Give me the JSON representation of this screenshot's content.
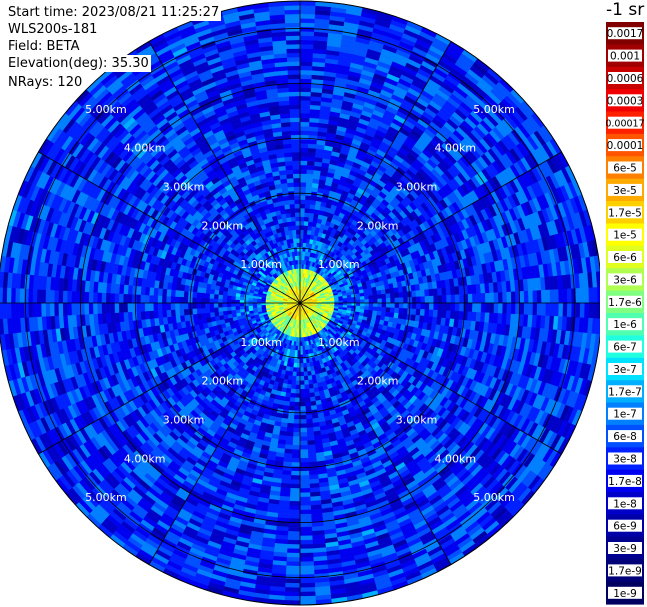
{
  "info": {
    "start_time": "Start time: 2023/08/21 11:25:27",
    "instrument": "WLS200s-181",
    "field": "Field: BETA",
    "elevation": "Elevation(deg): 35.30",
    "nrays": "NRays: 120"
  },
  "colorbar": {
    "unit": "-1 sr",
    "labels": [
      "0.0017",
      "0.001",
      "0.0006",
      "0.0003",
      "0.00017",
      "0.0001",
      "6e-5",
      "3e-5",
      "1.7e-5",
      "1e-5",
      "6e-6",
      "3e-6",
      "1.7e-6",
      "1e-6",
      "6e-7",
      "3e-7",
      "1.7e-7",
      "1e-7",
      "6e-8",
      "3e-8",
      "1.7e-8",
      "1e-8",
      "6e-9",
      "3e-9",
      "1.7e-9",
      "1e-9"
    ],
    "colors": [
      "#800000",
      "#a00000",
      "#c80000",
      "#f00000",
      "#ff2000",
      "#ff5500",
      "#ff8000",
      "#ffaa00",
      "#ffd000",
      "#ffff00",
      "#e0ff20",
      "#b0ff50",
      "#80ff80",
      "#50ffb0",
      "#20ffe0",
      "#00e0ff",
      "#00b0ff",
      "#0080ff",
      "#0050ff",
      "#0020ff",
      "#0000f0",
      "#0000c8",
      "#0000a8",
      "#000090",
      "#000078",
      "#000060"
    ]
  },
  "chart_data": {
    "type": "heatmap",
    "projection": "polar",
    "nrays": 120,
    "range_rings_km": [
      1,
      2,
      3,
      4,
      5
    ],
    "range_ring_labels": [
      "1.00km",
      "2.00km",
      "3.00km",
      "4.00km",
      "5.00km"
    ],
    "max_range_km": 5.5,
    "spoke_count": 12,
    "title": "",
    "colormap": "jet",
    "color_scale": "log",
    "vmin": 1e-09,
    "vmax": 0.0017,
    "regions": [
      {
        "range_km": [
          0,
          0.35
        ],
        "value": 1e-05
      },
      {
        "range_km": [
          0.35,
          0.65
        ],
        "value": 3e-06
      },
      {
        "range_km": [
          0.65,
          1.2
        ],
        "value": 6e-08
      },
      {
        "range_km": [
          1.2,
          5.5
        ],
        "value": 3e-08
      }
    ]
  },
  "colors": {
    "grid": "#000000",
    "ring_label": "#ffffff",
    "background": "#ffffff"
  }
}
